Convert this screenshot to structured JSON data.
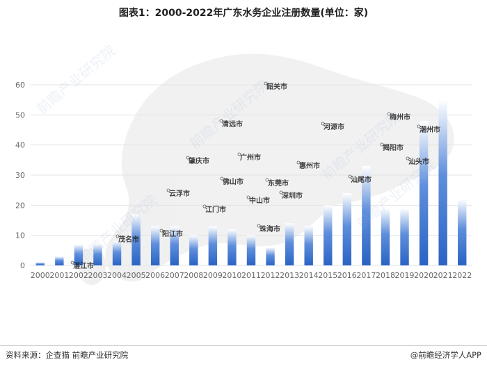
{
  "title": "图表1：2000-2022年广东水务企业注册数量(单位：家)",
  "footer": {
    "source": "资料来源：企查猫 前瞻产业研究院",
    "brand": "@前瞻经济学人APP"
  },
  "watermark": {
    "text": "前瞻产业研究院",
    "map_labels": [
      "韶关市",
      "清远市",
      "河源市",
      "梅州市",
      "潮州市",
      "肇庆市",
      "广州市",
      "惠州市",
      "揭阳市",
      "汕头市",
      "佛山市",
      "东莞市",
      "云浮市",
      "汕尾市",
      "中山市",
      "深圳市",
      "江门市",
      "阳江市",
      "珠海市",
      "茂名市",
      "湛江市"
    ]
  },
  "colors": {
    "bar_top": "#2a63c4",
    "bar_bottom": "#ffffff",
    "grid": "#e3e3e3",
    "axis_text": "#666666"
  },
  "chart_data": {
    "type": "bar",
    "categories": [
      "2000",
      "2001",
      "2002",
      "2003",
      "2004",
      "2005",
      "2006",
      "2007",
      "2008",
      "2009",
      "2010",
      "2011",
      "2012",
      "2013",
      "2014",
      "2015",
      "2016",
      "2017",
      "2018",
      "2019",
      "2020",
      "2021",
      "2022"
    ],
    "values": [
      1,
      3,
      7,
      7,
      8,
      17,
      13,
      13,
      10,
      13,
      12,
      10,
      6,
      14,
      13,
      20,
      24,
      33,
      19,
      19,
      48,
      55,
      22
    ],
    "ylim": [
      0,
      60
    ],
    "yticks": [
      0,
      10,
      20,
      30,
      40,
      50,
      60
    ],
    "grid": true,
    "legend": "none",
    "title": "图表1：2000-2022年广东水务企业注册数量(单位：家)"
  }
}
